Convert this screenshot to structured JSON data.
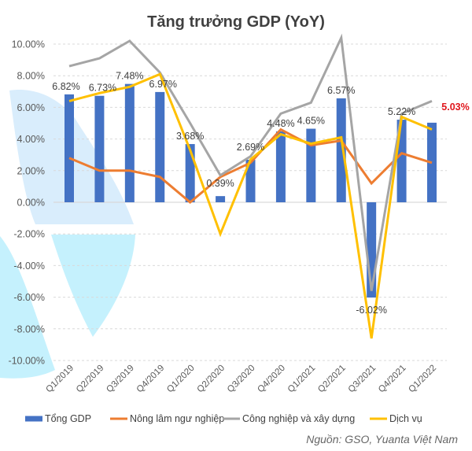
{
  "chart_data": {
    "type": "bar",
    "title": "Tăng trưởng GDP (YoY)",
    "xlabel": "",
    "ylabel": "",
    "ylim": [
      -10,
      10
    ],
    "ytick_step": 2,
    "ytick_labels": [
      "10.00%",
      "8.00%",
      "6.00%",
      "4.00%",
      "2.00%",
      "0.00%",
      "-2.00%",
      "-4.00%",
      "-6.00%",
      "-8.00%",
      "-10.00%"
    ],
    "grid": true,
    "legend_position": "bottom",
    "categories": [
      "Q1/2019",
      "Q2/2019",
      "Q3/2019",
      "Q4/2019",
      "Q1/2020",
      "Q2/2020",
      "Q3/2020",
      "Q4/2020",
      "Q1/2021",
      "Q2/2021",
      "Q3/2021",
      "Q4/2021",
      "Q1/2022"
    ],
    "series": [
      {
        "name": "Tổng GDP",
        "type": "bar",
        "color": "#4472c4",
        "values": [
          6.82,
          6.73,
          7.48,
          6.97,
          3.68,
          0.39,
          2.69,
          4.48,
          4.65,
          6.57,
          -6.02,
          5.22,
          5.03
        ],
        "labels": [
          "6.82%",
          "6.73%",
          "7.48%",
          "6.97%",
          "3.68%",
          "0.39%",
          "2.69%",
          "4.48%",
          "4.65%",
          "6.57%",
          "-6.02%",
          "5.22%",
          "5.03%"
        ],
        "highlight_index": 12,
        "highlight_color": "#e0161c"
      },
      {
        "name": "Nông lâm ngư nghiệp",
        "type": "line",
        "color": "#ed7d31",
        "values": [
          2.8,
          2.0,
          2.0,
          1.6,
          0.0,
          1.6,
          2.5,
          4.6,
          3.6,
          3.9,
          1.2,
          3.1,
          2.5
        ]
      },
      {
        "name": "Công nghiệp và xây dựng",
        "type": "line",
        "color": "#a5a5a5",
        "values": [
          8.6,
          9.1,
          10.2,
          8.2,
          5.0,
          1.7,
          2.9,
          5.6,
          6.3,
          10.4,
          -5.6,
          5.6,
          6.4
        ]
      },
      {
        "name": "Dịch vụ",
        "type": "line",
        "color": "#ffc000",
        "values": [
          6.4,
          6.9,
          7.3,
          8.1,
          3.3,
          -2.0,
          2.7,
          4.3,
          3.7,
          4.1,
          -8.6,
          5.4,
          4.6
        ]
      }
    ],
    "source": "Nguồn: GSO, Yuanta Việt Nam"
  }
}
